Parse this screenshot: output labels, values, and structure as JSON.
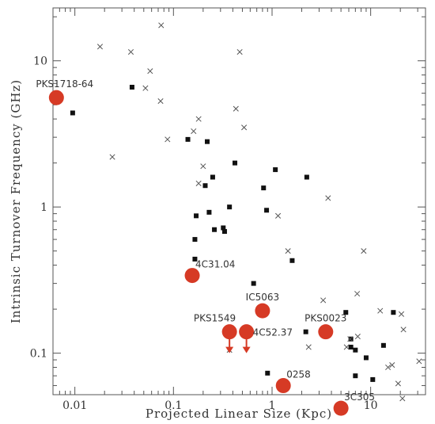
{
  "chart_data": {
    "type": "scatter",
    "title": "",
    "xlabel": "Projected  Linear Size (Kpc)",
    "ylabel": "Intrinsic Turnover Frequency  (GHz)",
    "xscale": "log",
    "yscale": "log",
    "xlim": [
      0.006,
      36
    ],
    "ylim": [
      0.052,
      23
    ],
    "x_ticks": [
      {
        "value": 0.01,
        "label": "0.01"
      },
      {
        "value": 0.1,
        "label": "0.1"
      },
      {
        "value": 1,
        "label": "1"
      },
      {
        "value": 10,
        "label": "10"
      }
    ],
    "y_ticks": [
      {
        "value": 0.1,
        "label": "0.1"
      },
      {
        "value": 1,
        "label": "1"
      },
      {
        "value": 10,
        "label": "10"
      }
    ],
    "grid": false,
    "series": [
      {
        "marker": "square",
        "color": "#111111",
        "points": [
          {
            "x": 0.038,
            "y": 6.6
          },
          {
            "x": 0.0095,
            "y": 4.4
          },
          {
            "x": 0.14,
            "y": 2.9
          },
          {
            "x": 0.22,
            "y": 2.8
          },
          {
            "x": 0.42,
            "y": 2.0
          },
          {
            "x": 1.08,
            "y": 1.8
          },
          {
            "x": 0.25,
            "y": 1.6
          },
          {
            "x": 2.25,
            "y": 1.6
          },
          {
            "x": 0.21,
            "y": 1.4
          },
          {
            "x": 0.82,
            "y": 1.35
          },
          {
            "x": 0.37,
            "y": 1.0
          },
          {
            "x": 0.88,
            "y": 0.95
          },
          {
            "x": 0.23,
            "y": 0.92
          },
          {
            "x": 0.17,
            "y": 0.87
          },
          {
            "x": 0.32,
            "y": 0.72
          },
          {
            "x": 0.26,
            "y": 0.7
          },
          {
            "x": 0.33,
            "y": 0.68
          },
          {
            "x": 0.165,
            "y": 0.6
          },
          {
            "x": 0.165,
            "y": 0.44
          },
          {
            "x": 1.6,
            "y": 0.43
          },
          {
            "x": 0.65,
            "y": 0.3
          },
          {
            "x": 5.6,
            "y": 0.19
          },
          {
            "x": 17.0,
            "y": 0.19
          },
          {
            "x": 6.3,
            "y": 0.125
          },
          {
            "x": 6.3,
            "y": 0.11
          },
          {
            "x": 7.0,
            "y": 0.105
          },
          {
            "x": 2.2,
            "y": 0.14
          },
          {
            "x": 13.5,
            "y": 0.113
          },
          {
            "x": 9.0,
            "y": 0.093
          },
          {
            "x": 0.9,
            "y": 0.073
          },
          {
            "x": 7.0,
            "y": 0.07
          },
          {
            "x": 10.5,
            "y": 0.066
          }
        ]
      },
      {
        "marker": "cross",
        "color": "#555555",
        "points": [
          {
            "x": 0.075,
            "y": 17.5
          },
          {
            "x": 0.018,
            "y": 12.5
          },
          {
            "x": 0.037,
            "y": 11.5
          },
          {
            "x": 0.47,
            "y": 11.5
          },
          {
            "x": 0.058,
            "y": 8.5
          },
          {
            "x": 0.052,
            "y": 6.5
          },
          {
            "x": 0.074,
            "y": 5.3
          },
          {
            "x": 0.43,
            "y": 4.7
          },
          {
            "x": 0.18,
            "y": 4.0
          },
          {
            "x": 0.52,
            "y": 3.5
          },
          {
            "x": 0.16,
            "y": 3.3
          },
          {
            "x": 0.087,
            "y": 2.9
          },
          {
            "x": 0.024,
            "y": 2.2
          },
          {
            "x": 0.2,
            "y": 1.9
          },
          {
            "x": 0.18,
            "y": 1.45
          },
          {
            "x": 3.7,
            "y": 1.15
          },
          {
            "x": 1.15,
            "y": 0.87
          },
          {
            "x": 1.45,
            "y": 0.5
          },
          {
            "x": 8.5,
            "y": 0.5
          },
          {
            "x": 7.3,
            "y": 0.255
          },
          {
            "x": 3.3,
            "y": 0.23
          },
          {
            "x": 12.5,
            "y": 0.195
          },
          {
            "x": 20.5,
            "y": 0.185
          },
          {
            "x": 6.2,
            "y": 0.125
          },
          {
            "x": 7.4,
            "y": 0.13
          },
          {
            "x": 21.5,
            "y": 0.145
          },
          {
            "x": 2.35,
            "y": 0.11
          },
          {
            "x": 5.7,
            "y": 0.11
          },
          {
            "x": 0.37,
            "y": 0.105
          },
          {
            "x": 15.0,
            "y": 0.08
          },
          {
            "x": 16.5,
            "y": 0.083
          },
          {
            "x": 31.0,
            "y": 0.088
          },
          {
            "x": 19.0,
            "y": 0.062
          },
          {
            "x": 21.0,
            "y": 0.049
          }
        ]
      },
      {
        "marker": "circle",
        "color": "#d63a25",
        "points": [
          {
            "x": 0.0065,
            "y": 5.6,
            "label": "PKS1718-64",
            "label_pos": "above-left"
          },
          {
            "x": 0.155,
            "y": 0.34,
            "label": "4C31.04",
            "label_pos": "above-right"
          },
          {
            "x": 0.8,
            "y": 0.195,
            "label": "IC5063",
            "label_pos": "above"
          },
          {
            "x": 3.5,
            "y": 0.14,
            "label": "PKS0023",
            "label_pos": "above"
          },
          {
            "x": 0.37,
            "y": 0.14,
            "label": "PKS1549",
            "label_pos": "above-left",
            "upper_limit": true
          },
          {
            "x": 0.55,
            "y": 0.14,
            "label": "4C52.37",
            "label_pos": "right",
            "upper_limit": true
          },
          {
            "x": 1.3,
            "y": 0.06,
            "label": "0258",
            "label_pos": "above-right"
          },
          {
            "x": 5.0,
            "y": 0.042,
            "label": "3C305",
            "label_pos": "above-right"
          }
        ]
      }
    ]
  }
}
